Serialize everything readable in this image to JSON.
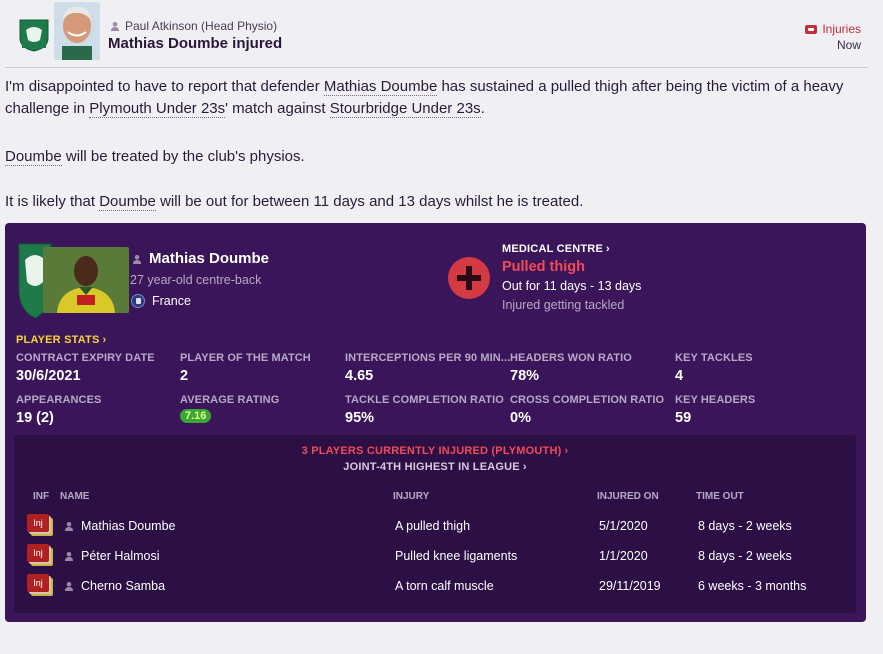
{
  "header": {
    "sender": "Paul Atkinson (Head Physio)",
    "title": "Mathias Doumbe injured",
    "tag": "Injuries",
    "time": "Now"
  },
  "body": {
    "p1_a": "I'm disappointed to have to report that defender ",
    "p1_player": "Mathias Doumbe",
    "p1_b": " has sustained a pulled thigh after being the victim of a heavy challenge in ",
    "p1_team": "Plymouth Under 23s",
    "p1_c": "' match against ",
    "p1_opp": "Stourbridge Under 23s",
    "p1_d": ".",
    "p2_player": "Doumbe",
    "p2_rest": " will be treated by the club's physios.",
    "p3_a": "It is likely that ",
    "p3_player": "Doumbe",
    "p3_b": " will be out for between 11 days and 13 days whilst he is treated."
  },
  "player": {
    "name": "Mathias Doumbe",
    "desc": "27 year-old centre-back",
    "nation": "France"
  },
  "medical": {
    "section": "MEDICAL CENTRE",
    "injury": "Pulled thigh",
    "out": "Out for 11 days - 13 days",
    "cause": "Injured getting tackled"
  },
  "stats": {
    "header": "PLAYER STATS",
    "items": [
      {
        "label": "CONTRACT EXPIRY DATE",
        "value": "30/6/2021"
      },
      {
        "label": "PLAYER OF THE MATCH",
        "value": "2"
      },
      {
        "label": "INTERCEPTIONS PER 90 MIN...",
        "value": "4.65"
      },
      {
        "label": "HEADERS WON RATIO",
        "value": "78%"
      },
      {
        "label": "KEY TACKLES",
        "value": "4"
      },
      {
        "label": "APPEARANCES",
        "value": "19 (2)"
      },
      {
        "label": "AVERAGE RATING",
        "value": "7.16"
      },
      {
        "label": "TACKLE COMPLETION RATIO",
        "value": "95%"
      },
      {
        "label": "CROSS COMPLETION RATIO",
        "value": "0%"
      },
      {
        "label": "KEY HEADERS",
        "value": "59"
      }
    ]
  },
  "injuries": {
    "count_label": "3 PLAYERS CURRENTLY INJURED (PLYMOUTH)",
    "rank_label": "JOINT-4TH HIGHEST IN LEAGUE",
    "columns": {
      "inf": "INF",
      "name": "NAME",
      "injury": "INJURY",
      "injured_on": "INJURED ON",
      "time_out": "TIME OUT"
    },
    "badge": "Inj",
    "rows": [
      {
        "name": "Mathias Doumbe",
        "injury": "A pulled thigh",
        "date": "5/1/2020",
        "time_out": "8 days - 2 weeks"
      },
      {
        "name": "Péter Halmosi",
        "injury": "Pulled knee ligaments",
        "date": "1/1/2020",
        "time_out": "8 days - 2 weeks"
      },
      {
        "name": "Cherno Samba",
        "injury": "A torn calf muscle",
        "date": "29/11/2019",
        "time_out": "6 weeks - 3 months"
      }
    ]
  },
  "colors": {
    "card_bg": "#3a1559",
    "panel_bg": "#2c0f45",
    "accent_red": "#f24a56",
    "accent_yellow": "#f5d53a",
    "rating_green": "#3aa63a"
  },
  "icons": {
    "person": "person-icon",
    "tag": "injury-tag-icon",
    "medical": "medical-cross-icon",
    "chevron": "chevron-right-icon",
    "flag": "france-flag-icon"
  }
}
